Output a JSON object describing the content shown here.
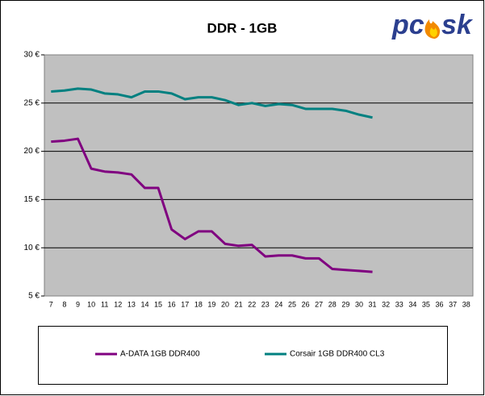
{
  "chart_data": {
    "type": "line",
    "title": "DDR - 1GB",
    "logo": [
      "pc",
      "sk"
    ],
    "categories": [
      "7",
      "8",
      "9",
      "10",
      "11",
      "12",
      "13",
      "14",
      "15",
      "16",
      "17",
      "18",
      "19",
      "20",
      "21",
      "22",
      "23",
      "24",
      "25",
      "26",
      "27",
      "28",
      "29",
      "30",
      "31",
      "32",
      "33",
      "34",
      "35",
      "36",
      "37",
      "38"
    ],
    "series": [
      {
        "name": "A-DATA 1GB DDR400",
        "color": "#800080",
        "values": [
          21.0,
          21.1,
          21.3,
          18.2,
          17.9,
          17.8,
          17.6,
          16.2,
          16.2,
          11.9,
          10.9,
          11.7,
          11.7,
          10.4,
          10.2,
          10.3,
          9.1,
          9.2,
          9.2,
          8.9,
          8.9,
          7.8,
          7.7,
          7.6,
          7.5,
          null,
          null,
          null,
          null,
          null,
          null,
          null
        ]
      },
      {
        "name": "Corsair 1GB DDR400 CL3",
        "color": "#008080",
        "values": [
          26.2,
          26.3,
          26.5,
          26.4,
          26.0,
          25.9,
          25.6,
          26.2,
          26.2,
          26.0,
          25.4,
          25.6,
          25.6,
          25.3,
          24.8,
          25.0,
          24.7,
          24.9,
          24.8,
          24.4,
          24.4,
          24.4,
          24.2,
          23.8,
          23.5,
          null,
          null,
          null,
          null,
          null,
          null,
          null
        ]
      }
    ],
    "ylim": [
      5,
      30
    ],
    "yticks": [
      {
        "value": 5,
        "label": "5 €"
      },
      {
        "value": 10,
        "label": "10 €"
      },
      {
        "value": 15,
        "label": "15 €"
      },
      {
        "value": 20,
        "label": "20 €"
      },
      {
        "value": 25,
        "label": "25 €"
      },
      {
        "value": 30,
        "label": "30 €"
      }
    ],
    "grid": true,
    "plot_color": "#c0c0c0"
  }
}
